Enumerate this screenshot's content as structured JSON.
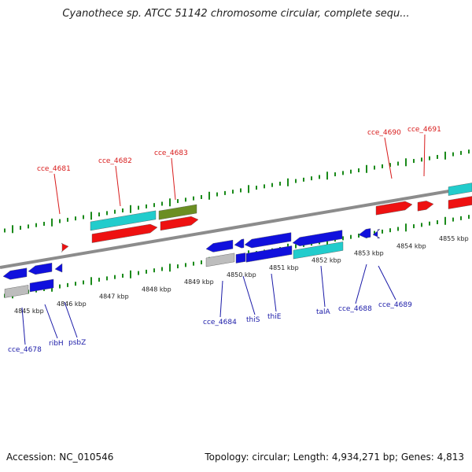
{
  "title": "Cyanothece sp. ATCC 51142 chromosome circular, complete sequ...",
  "footer": {
    "accession": "Accession: NC_010546",
    "topology": "Topology: circular; Length: 4,934,271 bp; Genes: 4,813"
  },
  "colors": {
    "backbone": "#8c8c8c",
    "tick": "#1a8a1a",
    "forward_label": "#d81b1b",
    "reverse_label": "#1a1aa8",
    "red": "#ee1111",
    "blue": "#1010dd",
    "cyan": "#22cccc",
    "olive": "#6b8e23",
    "grey": "#bdbdbd"
  },
  "ticks": [
    "4845 kbp",
    "4846 kbp",
    "4847 kbp",
    "4848 kbp",
    "4849 kbp",
    "4850 kbp",
    "4851 kbp",
    "4852 kbp",
    "4853 kbp",
    "4854 kbp",
    "4855 kbp"
  ],
  "labels_forward": [
    "cce_4681",
    "cce_4682",
    "cce_4683",
    "cce_4690",
    "cce_4691"
  ],
  "labels_reverse": [
    "cce_4678",
    "ribH",
    "psbZ",
    "cce_4684",
    "thiS",
    "thiE",
    "talA",
    "cce_4688",
    "cce_4689"
  ]
}
